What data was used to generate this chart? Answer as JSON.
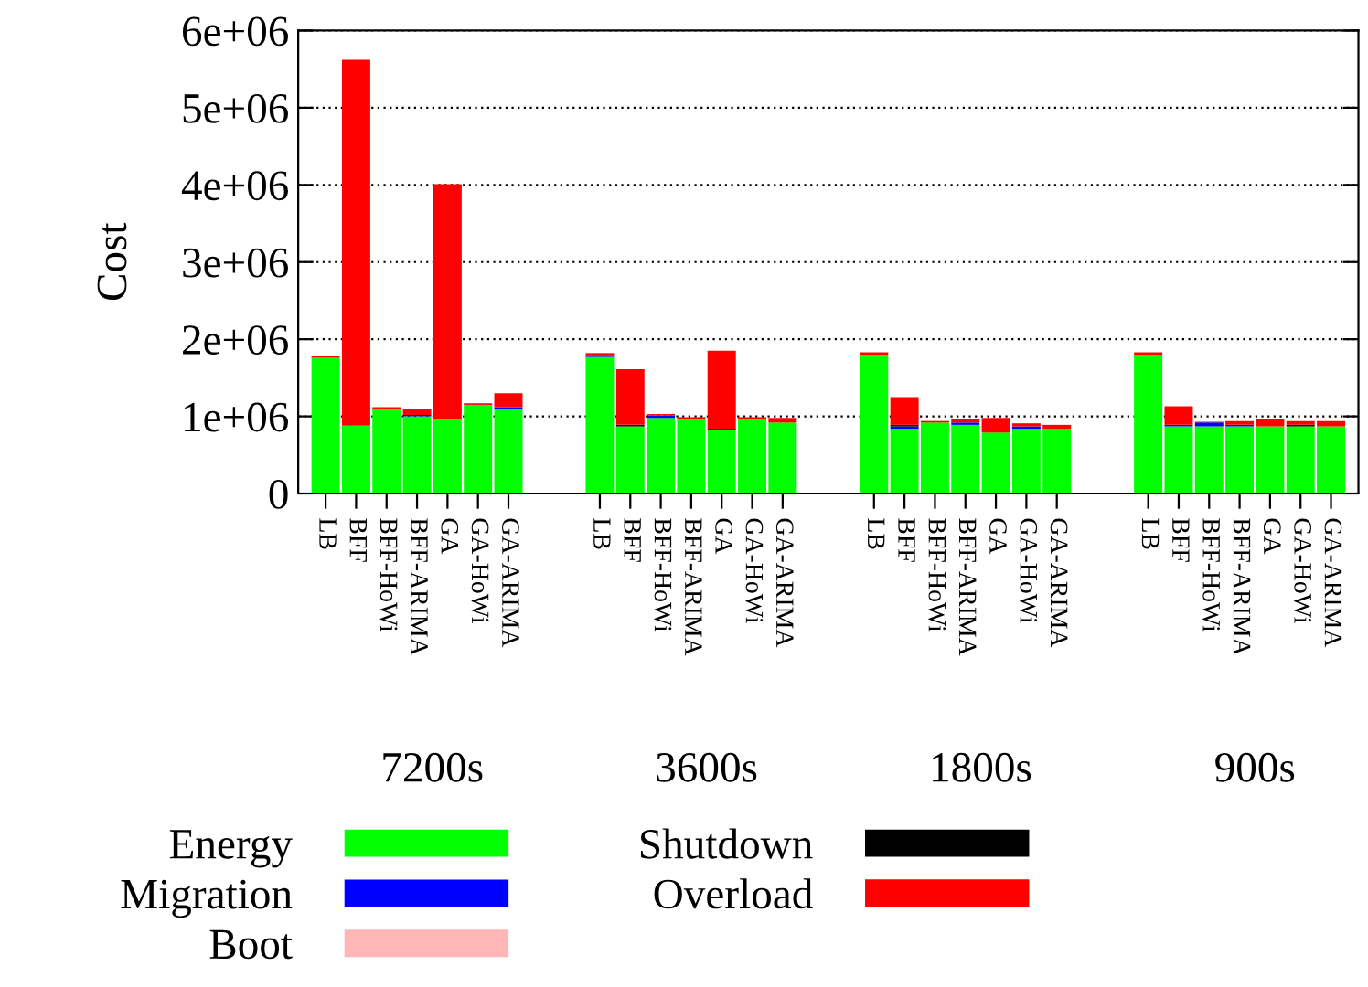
{
  "chart_data": {
    "type": "bar",
    "stacked": true,
    "ylabel": "Cost",
    "categories": [
      "LB",
      "BFF",
      "BFF-HoWi",
      "BFF-ARIMA",
      "GA",
      "GA-HoWi",
      "GA-ARIMA",
      null,
      null,
      "LB",
      "BFF",
      "BFF-HoWi",
      "BFF-ARIMA",
      "GA",
      "GA-HoWi",
      "GA-ARIMA",
      null,
      null,
      "LB",
      "BFF",
      "BFF-HoWi",
      "BFF-ARIMA",
      "GA",
      "GA-HoWi",
      "GA-ARIMA",
      null,
      null,
      "LB",
      "BFF",
      "BFF-HoWi",
      "BFF-ARIMA",
      "GA",
      "GA-HoWi",
      "GA-ARIMA"
    ],
    "series": [
      {
        "name": "Energy",
        "color": "#00ff00",
        "values": [
          1760000,
          880000,
          1100000,
          1000000,
          970000,
          1150000,
          1100000,
          null,
          null,
          1770000,
          870000,
          980000,
          970000,
          820000,
          970000,
          920000,
          null,
          null,
          1800000,
          840000,
          920000,
          890000,
          790000,
          840000,
          840000,
          null,
          null,
          1800000,
          870000,
          870000,
          870000,
          870000,
          870000,
          870000
        ]
      },
      {
        "name": "Migration",
        "color": "#0000ff",
        "values": [
          0,
          0,
          0,
          20000,
          0,
          0,
          20000,
          null,
          null,
          20000,
          0,
          30000,
          0,
          20000,
          0,
          0,
          null,
          null,
          0,
          30000,
          0,
          30000,
          0,
          30000,
          0,
          null,
          null,
          0,
          20000,
          50000,
          20000,
          0,
          0,
          0
        ]
      },
      {
        "name": "Boot",
        "color": "#ffb6b6",
        "values": [
          0,
          0,
          0,
          0,
          0,
          0,
          0,
          null,
          null,
          0,
          0,
          0,
          0,
          0,
          0,
          0,
          null,
          null,
          0,
          0,
          0,
          0,
          0,
          0,
          0,
          null,
          null,
          0,
          0,
          0,
          0,
          0,
          0,
          0
        ]
      },
      {
        "name": "Shutdown",
        "color": "#000000",
        "values": [
          0,
          0,
          0,
          0,
          0,
          0,
          0,
          null,
          null,
          0,
          20000,
          0,
          0,
          0,
          0,
          0,
          null,
          null,
          0,
          20000,
          0,
          0,
          0,
          0,
          0,
          null,
          null,
          0,
          0,
          0,
          0,
          0,
          20000,
          0
        ]
      },
      {
        "name": "Overload",
        "color": "#ff0000",
        "values": [
          30000,
          4740000,
          20000,
          70000,
          3040000,
          20000,
          180000,
          null,
          null,
          30000,
          720000,
          20000,
          20000,
          1010000,
          20000,
          60000,
          null,
          null,
          30000,
          360000,
          20000,
          40000,
          190000,
          40000,
          50000,
          null,
          null,
          30000,
          240000,
          10000,
          50000,
          90000,
          50000,
          70000
        ]
      }
    ],
    "ylim": [
      0,
      6000000
    ],
    "yticks": [
      0,
      {
        "value": 1000000,
        "label": "1e+06"
      },
      {
        "value": 2000000,
        "label": "2e+06"
      },
      {
        "value": 3000000,
        "label": "3e+06"
      },
      {
        "value": 4000000,
        "label": "4e+06"
      },
      {
        "value": 5000000,
        "label": "5e+06"
      },
      {
        "value": 6000000,
        "label": "6e+06"
      }
    ],
    "annotations": [
      "7200s",
      "3600s",
      "1800s",
      "900s"
    ],
    "grid": "y",
    "legend": "bottom"
  }
}
